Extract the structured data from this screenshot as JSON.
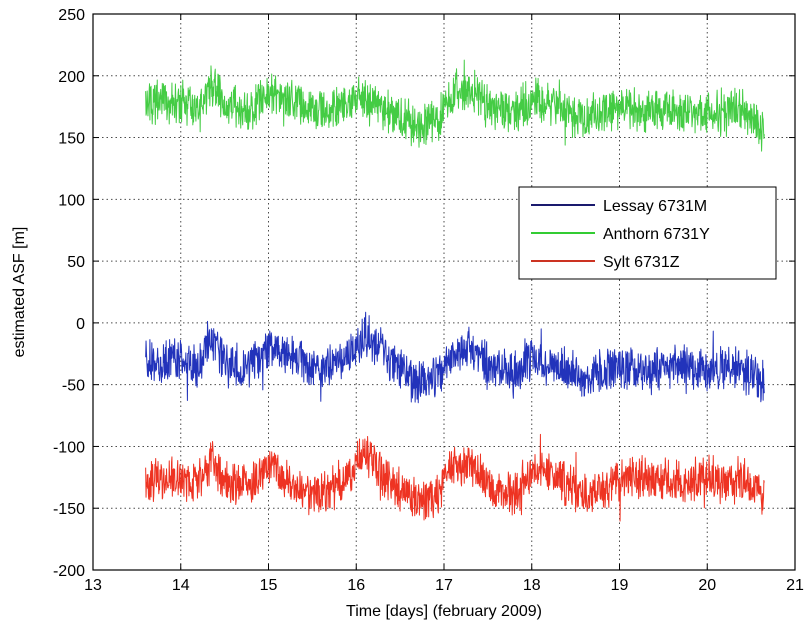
{
  "chart_data": {
    "type": "line",
    "title": "",
    "xlabel": "Time [days] (february 2009)",
    "ylabel": "estimated ASF [m]",
    "xlim": [
      13,
      21
    ],
    "ylim": [
      -200,
      250
    ],
    "xticks": [
      13,
      14,
      15,
      16,
      17,
      18,
      19,
      20,
      21
    ],
    "yticks": [
      -200,
      -150,
      -100,
      -50,
      0,
      50,
      100,
      150,
      200,
      250
    ],
    "grid": true,
    "legend_position": "right",
    "series": [
      {
        "name": "Lessay 6731M",
        "legend_color": "#1a1a6e",
        "color": "#2233bb",
        "x": [
          13.6,
          13.8,
          14.0,
          14.2,
          14.35,
          14.5,
          14.8,
          15.0,
          15.3,
          15.6,
          15.8,
          16.0,
          16.1,
          16.4,
          16.7,
          16.95,
          17.0,
          17.3,
          17.5,
          17.8,
          18.0,
          18.3,
          18.6,
          18.8,
          19.0,
          19.3,
          19.6,
          19.8,
          20.0,
          20.2,
          20.4,
          20.65
        ],
        "y": [
          -30,
          -33,
          -30,
          -35,
          -10,
          -35,
          -35,
          -20,
          -30,
          -40,
          -30,
          -20,
          -10,
          -30,
          -50,
          -40,
          -30,
          -20,
          -35,
          -40,
          -30,
          -35,
          -45,
          -40,
          -35,
          -40,
          -35,
          -35,
          -40,
          -35,
          -38,
          -50
        ]
      },
      {
        "name": "Anthorn 6731Y",
        "legend_color": "#33cc33",
        "color": "#44cc44",
        "x": [
          13.6,
          13.8,
          14.0,
          14.2,
          14.35,
          14.5,
          14.8,
          15.0,
          15.3,
          15.6,
          15.8,
          16.0,
          16.1,
          16.4,
          16.7,
          16.95,
          17.0,
          17.3,
          17.5,
          17.8,
          18.0,
          18.3,
          18.6,
          18.8,
          19.0,
          19.3,
          19.6,
          19.8,
          20.0,
          20.2,
          20.4,
          20.65
        ],
        "y": [
          180,
          177,
          178,
          170,
          195,
          175,
          172,
          185,
          178,
          172,
          175,
          185,
          180,
          170,
          160,
          165,
          180,
          190,
          175,
          170,
          180,
          175,
          165,
          170,
          175,
          170,
          175,
          172,
          170,
          175,
          172,
          155
        ]
      },
      {
        "name": "Sylt 6731Z",
        "legend_color": "#cc3322",
        "color": "#ee3322",
        "x": [
          13.6,
          13.8,
          14.0,
          14.2,
          14.35,
          14.5,
          14.8,
          15.0,
          15.3,
          15.6,
          15.8,
          16.0,
          16.1,
          16.4,
          16.7,
          16.95,
          17.0,
          17.3,
          17.5,
          17.8,
          18.0,
          18.3,
          18.6,
          18.8,
          19.0,
          19.3,
          19.6,
          19.8,
          20.0,
          20.2,
          20.4,
          20.65
        ],
        "y": [
          -130,
          -125,
          -125,
          -130,
          -110,
          -130,
          -130,
          -115,
          -135,
          -140,
          -130,
          -115,
          -105,
          -130,
          -145,
          -140,
          -120,
          -115,
          -130,
          -140,
          -120,
          -125,
          -140,
          -135,
          -125,
          -125,
          -130,
          -130,
          -125,
          -130,
          -125,
          -140
        ]
      }
    ]
  }
}
